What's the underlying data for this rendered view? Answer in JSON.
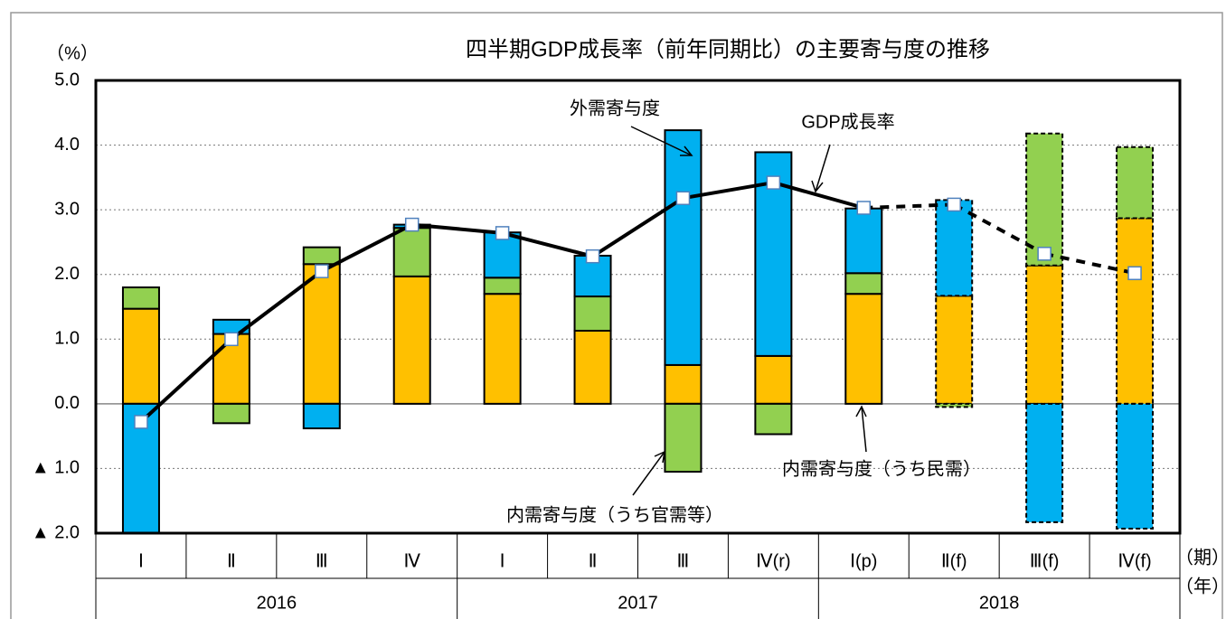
{
  "chart_data": {
    "type": "stacked_bar_line",
    "title": "四半期GDP成長率（前年同期比）の主要寄与度の推移",
    "y_axis_label": "（%）",
    "x_axis_label": "（期）",
    "x2_axis_label": "（年）",
    "categories": [
      "Ⅰ",
      "Ⅱ",
      "Ⅲ",
      "Ⅳ",
      "Ⅰ",
      "Ⅱ",
      "Ⅲ",
      "Ⅳ(r)",
      "Ⅰ(p)",
      "Ⅱ(f)",
      "Ⅲ(f)",
      "Ⅳ(f)"
    ],
    "years": [
      "2016",
      "2017",
      "2018"
    ],
    "ylim": [
      -2,
      5
    ],
    "yticks": [
      {
        "value": -2,
        "label": "▲ 2.0"
      },
      {
        "value": -1,
        "label": "▲ 1.0"
      },
      {
        "value": 0,
        "label": "0.0"
      },
      {
        "value": 1,
        "label": "1.0"
      },
      {
        "value": 2,
        "label": "2.0"
      },
      {
        "value": 3,
        "label": "3.0"
      },
      {
        "value": 4,
        "label": "4.0"
      },
      {
        "value": 5,
        "label": "5.0"
      }
    ],
    "grid": true,
    "series": [
      {
        "name": "内需寄与度（うち民需）",
        "color": "#ffc000",
        "values": [
          1.47,
          1.08,
          2.16,
          1.97,
          1.7,
          1.13,
          0.6,
          0.74,
          1.7,
          1.67,
          2.14,
          2.87
        ]
      },
      {
        "name": "内需寄与度（うち官需等）",
        "color": "#92d050",
        "values": [
          0.33,
          -0.3,
          0.26,
          0.75,
          0.25,
          0.53,
          -1.05,
          -0.47,
          0.32,
          -0.05,
          2.04,
          1.1
        ]
      },
      {
        "name": "外需寄与度",
        "color": "#00b0f0",
        "values": [
          -2.05,
          0.22,
          -0.38,
          0.05,
          0.7,
          0.63,
          3.63,
          3.15,
          1.0,
          1.48,
          -1.83,
          -1.93
        ]
      },
      {
        "name": "GDP成長率",
        "type": "line",
        "color": "#000000",
        "values": [
          -0.28,
          1.0,
          2.05,
          2.77,
          2.64,
          2.28,
          3.18,
          3.42,
          3.03,
          3.08,
          2.32,
          2.02
        ]
      }
    ]
  }
}
